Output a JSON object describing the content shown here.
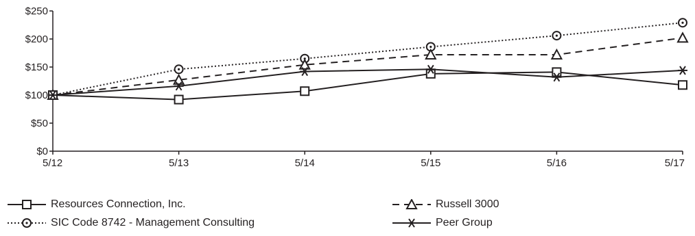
{
  "chart_data": {
    "type": "line",
    "categories": [
      "5/12",
      "5/13",
      "5/14",
      "5/15",
      "5/16",
      "5/17"
    ],
    "ylim": [
      0,
      250
    ],
    "yticks": [
      "$0",
      "$50",
      "$100",
      "$150",
      "$200",
      "$250"
    ],
    "grid": false,
    "legend_position": "bottom",
    "series": [
      {
        "name": "Resources Connection, Inc.",
        "marker": "square",
        "dash": "solid",
        "values": [
          100,
          92,
          107,
          138,
          141,
          118
        ]
      },
      {
        "name": "Russell 3000",
        "marker": "triangle",
        "dash": "dashed",
        "values": [
          100,
          127,
          154,
          172,
          172,
          202
        ]
      },
      {
        "name": "SIC Code 8742 - Management Consulting",
        "marker": "circle",
        "dash": "dotted",
        "values": [
          100,
          146,
          165,
          186,
          206,
          229
        ]
      },
      {
        "name": "Peer Group",
        "marker": "asterisk",
        "dash": "solid",
        "values": [
          100,
          116,
          142,
          146,
          132,
          144
        ]
      }
    ]
  }
}
